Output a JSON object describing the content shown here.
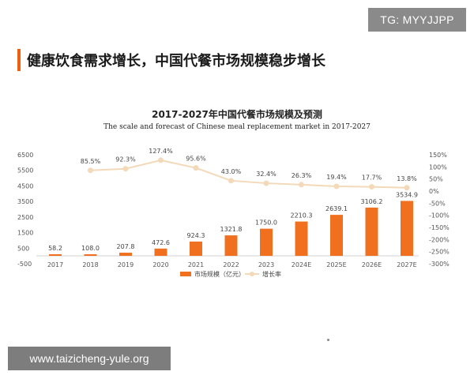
{
  "badge": "TG: MYYJJPP",
  "heading": "健康饮食需求增长，中国代餐市场规模稳步增长",
  "watermark": "www.taizicheng-yule.org",
  "colors": {
    "accent": "#e8620f",
    "bar": "#f07020",
    "line": "#f3d9b8",
    "grid": "#d0d0d0"
  },
  "chart_data": {
    "type": "bar",
    "title": "2017-2027年中国代餐市场规模及预测",
    "subtitle": "The scale and forecast of Chinese meal replacement market in 2017-2027",
    "categories": [
      "2017",
      "2018",
      "2019",
      "2020",
      "2021",
      "2022",
      "2023",
      "2024E",
      "2025E",
      "2026E",
      "2027E"
    ],
    "series": [
      {
        "name": "市场规模（亿元）",
        "type": "bar",
        "axis": "left",
        "values": [
          58.2,
          108.0,
          207.8,
          472.6,
          924.3,
          1321.8,
          1750.0,
          2210.3,
          2639.1,
          3106.2,
          3534.9
        ],
        "labels": [
          "58.2",
          "108.0",
          "207.8",
          "472.6",
          "924.3",
          "1321.8",
          "1750.0",
          "2210.3",
          "2639.1",
          "3106.2",
          "3534.9"
        ]
      },
      {
        "name": "增长率",
        "type": "line",
        "axis": "right",
        "values": [
          null,
          85.5,
          92.3,
          127.4,
          95.6,
          43.0,
          32.4,
          26.3,
          19.4,
          17.7,
          13.8
        ],
        "labels": [
          "",
          "85.5%",
          "92.3%",
          "127.4%",
          "95.6%",
          "43.0%",
          "32.4%",
          "26.3%",
          "19.4%",
          "17.7%",
          "13.8%"
        ]
      }
    ],
    "y_left": {
      "range": [
        -500,
        6500
      ],
      "ticks": [
        "6500",
        "5500",
        "4500",
        "3500",
        "2500",
        "1500",
        "500",
        "-500"
      ]
    },
    "y_right": {
      "range": [
        -300,
        150
      ],
      "ticks": [
        "150%",
        "100%",
        "50%",
        "0%",
        "-50%",
        "-100%",
        "-150%",
        "-200%",
        "-250%",
        "-300%"
      ]
    },
    "legend_position": "bottom",
    "grid": false
  }
}
